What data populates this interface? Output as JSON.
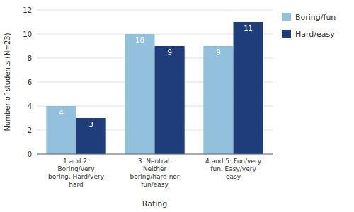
{
  "chart_data": {
    "type": "bar",
    "xlabel": "Rating",
    "ylabel": "Number of students (N=23)",
    "categories": [
      "1 and 2:\nBoring/very\nboring. Hard/very\nhard",
      "3: Neutral.\nNeither\nboring/hard nor\nfun/easy",
      "4 and 5: Fun/very\nfun. Easy/very\neasy"
    ],
    "series": [
      {
        "name": "Boring/fun",
        "color": "#92c0dd",
        "values": [
          4,
          10,
          9
        ]
      },
      {
        "name": "Hard/easy",
        "color": "#1f3d7a",
        "values": [
          3,
          9,
          11
        ]
      }
    ],
    "ylim": [
      0,
      12
    ],
    "yticks": [
      0,
      2,
      4,
      6,
      8,
      10,
      12
    ],
    "grid": true,
    "legend": "right",
    "data_labels": true
  }
}
